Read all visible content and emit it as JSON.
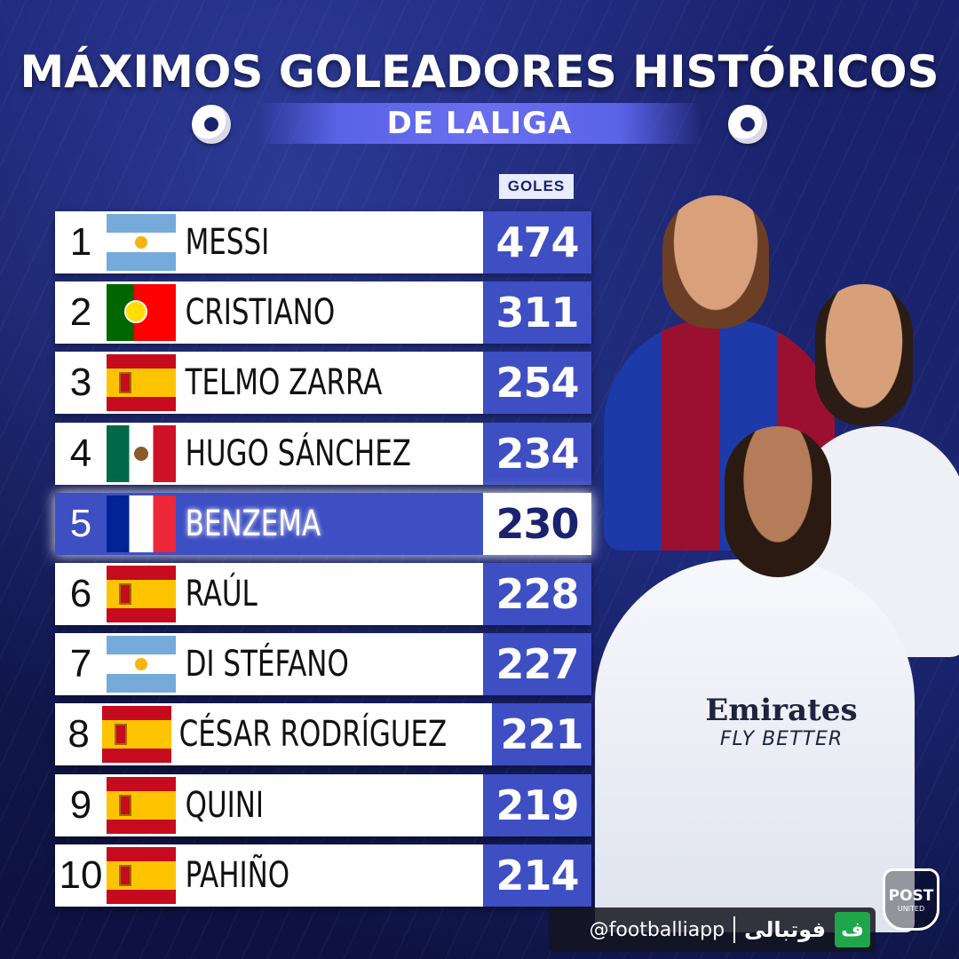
{
  "header": {
    "title": "MÁXIMOS GOLEADORES HISTÓRICOS",
    "subtitle": "DE LALIGA",
    "goals_column_label": "GOLES"
  },
  "colors": {
    "accent_blue": "#3e4fc4",
    "background_dark": "#141a55",
    "highlight_row": "#3e4fc4"
  },
  "rows": [
    {
      "rank": "1",
      "flag": "argentina-flag-icon",
      "name": "MESSI",
      "goals": "474"
    },
    {
      "rank": "2",
      "flag": "portugal-flag-icon",
      "name": "CRISTIANO",
      "goals": "311"
    },
    {
      "rank": "3",
      "flag": "spain-flag-icon",
      "name": "TELMO ZARRA",
      "goals": "254"
    },
    {
      "rank": "4",
      "flag": "mexico-flag-icon",
      "name": "HUGO SÁNCHEZ",
      "goals": "234"
    },
    {
      "rank": "5",
      "flag": "france-flag-icon",
      "name": "BENZEMA",
      "goals": "230",
      "highlighted": true
    },
    {
      "rank": "6",
      "flag": "spain-flag-icon",
      "name": "RAÚL",
      "goals": "228"
    },
    {
      "rank": "7",
      "flag": "argentina-flag-icon",
      "name": "DI STÉFANO",
      "goals": "227"
    },
    {
      "rank": "8",
      "flag": "spain-flag-icon",
      "name": "CÉSAR RODRÍGUEZ",
      "goals": "221"
    },
    {
      "rank": "9",
      "flag": "spain-flag-icon",
      "name": "QUINI",
      "goals": "219"
    },
    {
      "rank": "10",
      "flag": "spain-flag-icon",
      "name": "PAHIÑO",
      "goals": "214"
    }
  ],
  "players_art": {
    "sponsor_line1": "Emirates",
    "sponsor_line2": "FLY BETTER"
  },
  "footer": {
    "handle": "@footballiapp",
    "brand_fa": "فوتبالی",
    "brand_icon": "ف",
    "logo_top": "POST",
    "logo_bottom": "UNITED"
  }
}
